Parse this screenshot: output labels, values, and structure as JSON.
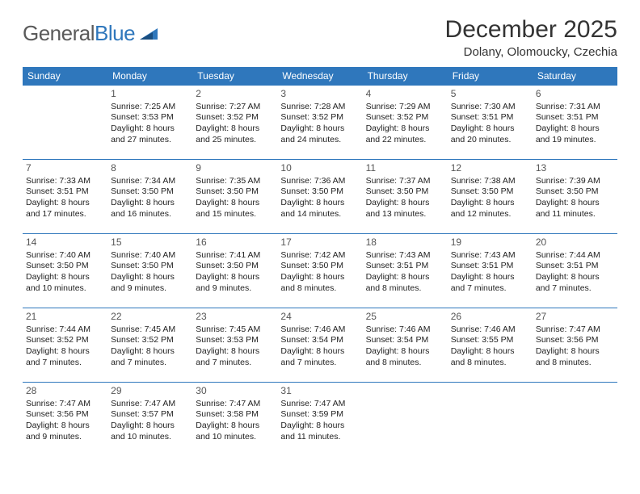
{
  "header": {
    "logo": {
      "word1": "General",
      "word2": "Blue"
    },
    "title": "December 2025",
    "location": "Dolany, Olomoucky, Czechia"
  },
  "calendar": {
    "header_bg": "#2f77bc",
    "header_fg": "#ffffff",
    "border_color": "#2f77bc",
    "text_color": "#222222",
    "daynum_color": "#555555",
    "font_size_body": 10.5,
    "font_size_header": 12,
    "font_size_daynum": 12,
    "weekdays": [
      "Sunday",
      "Monday",
      "Tuesday",
      "Wednesday",
      "Thursday",
      "Friday",
      "Saturday"
    ],
    "first_weekday_index": 1,
    "days": [
      {
        "n": 1,
        "sunrise": "7:25 AM",
        "sunset": "3:53 PM",
        "daylight": "8 hours and 27 minutes."
      },
      {
        "n": 2,
        "sunrise": "7:27 AM",
        "sunset": "3:52 PM",
        "daylight": "8 hours and 25 minutes."
      },
      {
        "n": 3,
        "sunrise": "7:28 AM",
        "sunset": "3:52 PM",
        "daylight": "8 hours and 24 minutes."
      },
      {
        "n": 4,
        "sunrise": "7:29 AM",
        "sunset": "3:52 PM",
        "daylight": "8 hours and 22 minutes."
      },
      {
        "n": 5,
        "sunrise": "7:30 AM",
        "sunset": "3:51 PM",
        "daylight": "8 hours and 20 minutes."
      },
      {
        "n": 6,
        "sunrise": "7:31 AM",
        "sunset": "3:51 PM",
        "daylight": "8 hours and 19 minutes."
      },
      {
        "n": 7,
        "sunrise": "7:33 AM",
        "sunset": "3:51 PM",
        "daylight": "8 hours and 17 minutes."
      },
      {
        "n": 8,
        "sunrise": "7:34 AM",
        "sunset": "3:50 PM",
        "daylight": "8 hours and 16 minutes."
      },
      {
        "n": 9,
        "sunrise": "7:35 AM",
        "sunset": "3:50 PM",
        "daylight": "8 hours and 15 minutes."
      },
      {
        "n": 10,
        "sunrise": "7:36 AM",
        "sunset": "3:50 PM",
        "daylight": "8 hours and 14 minutes."
      },
      {
        "n": 11,
        "sunrise": "7:37 AM",
        "sunset": "3:50 PM",
        "daylight": "8 hours and 13 minutes."
      },
      {
        "n": 12,
        "sunrise": "7:38 AM",
        "sunset": "3:50 PM",
        "daylight": "8 hours and 12 minutes."
      },
      {
        "n": 13,
        "sunrise": "7:39 AM",
        "sunset": "3:50 PM",
        "daylight": "8 hours and 11 minutes."
      },
      {
        "n": 14,
        "sunrise": "7:40 AM",
        "sunset": "3:50 PM",
        "daylight": "8 hours and 10 minutes."
      },
      {
        "n": 15,
        "sunrise": "7:40 AM",
        "sunset": "3:50 PM",
        "daylight": "8 hours and 9 minutes."
      },
      {
        "n": 16,
        "sunrise": "7:41 AM",
        "sunset": "3:50 PM",
        "daylight": "8 hours and 9 minutes."
      },
      {
        "n": 17,
        "sunrise": "7:42 AM",
        "sunset": "3:50 PM",
        "daylight": "8 hours and 8 minutes."
      },
      {
        "n": 18,
        "sunrise": "7:43 AM",
        "sunset": "3:51 PM",
        "daylight": "8 hours and 8 minutes."
      },
      {
        "n": 19,
        "sunrise": "7:43 AM",
        "sunset": "3:51 PM",
        "daylight": "8 hours and 7 minutes."
      },
      {
        "n": 20,
        "sunrise": "7:44 AM",
        "sunset": "3:51 PM",
        "daylight": "8 hours and 7 minutes."
      },
      {
        "n": 21,
        "sunrise": "7:44 AM",
        "sunset": "3:52 PM",
        "daylight": "8 hours and 7 minutes."
      },
      {
        "n": 22,
        "sunrise": "7:45 AM",
        "sunset": "3:52 PM",
        "daylight": "8 hours and 7 minutes."
      },
      {
        "n": 23,
        "sunrise": "7:45 AM",
        "sunset": "3:53 PM",
        "daylight": "8 hours and 7 minutes."
      },
      {
        "n": 24,
        "sunrise": "7:46 AM",
        "sunset": "3:54 PM",
        "daylight": "8 hours and 7 minutes."
      },
      {
        "n": 25,
        "sunrise": "7:46 AM",
        "sunset": "3:54 PM",
        "daylight": "8 hours and 8 minutes."
      },
      {
        "n": 26,
        "sunrise": "7:46 AM",
        "sunset": "3:55 PM",
        "daylight": "8 hours and 8 minutes."
      },
      {
        "n": 27,
        "sunrise": "7:47 AM",
        "sunset": "3:56 PM",
        "daylight": "8 hours and 8 minutes."
      },
      {
        "n": 28,
        "sunrise": "7:47 AM",
        "sunset": "3:56 PM",
        "daylight": "8 hours and 9 minutes."
      },
      {
        "n": 29,
        "sunrise": "7:47 AM",
        "sunset": "3:57 PM",
        "daylight": "8 hours and 10 minutes."
      },
      {
        "n": 30,
        "sunrise": "7:47 AM",
        "sunset": "3:58 PM",
        "daylight": "8 hours and 10 minutes."
      },
      {
        "n": 31,
        "sunrise": "7:47 AM",
        "sunset": "3:59 PM",
        "daylight": "8 hours and 11 minutes."
      }
    ],
    "labels": {
      "sunrise": "Sunrise:",
      "sunset": "Sunset:",
      "daylight": "Daylight:"
    }
  }
}
